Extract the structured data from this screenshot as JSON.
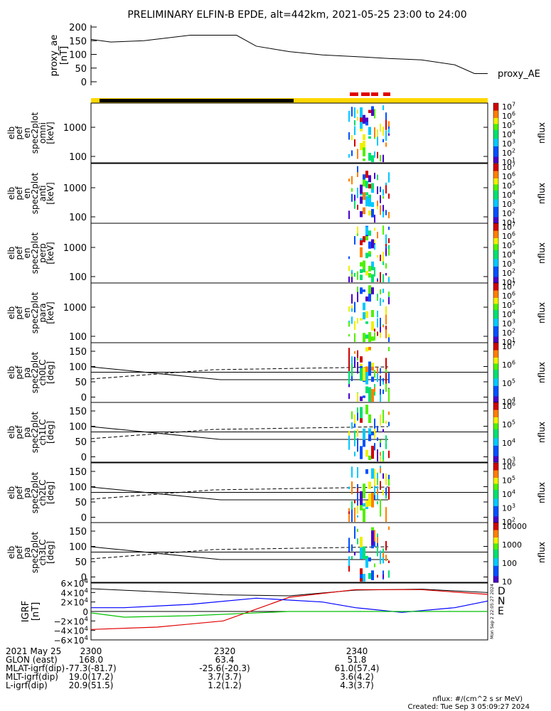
{
  "title": "PRELIMINARY ELFIN-B EPDE, alt=442km, 2021-05-25 23:00 to 24:00",
  "colors": {
    "yellow_bar": "#ffd700",
    "black_bar": "#000000",
    "red_marker": "#e00000",
    "grf_d": "#e00000",
    "grf_n": "#0000ff",
    "grf_e": "#00c000"
  },
  "chart_data": [
    {
      "type": "line",
      "panel": "proxy_ae",
      "ylabel": [
        "proxy_ae",
        "[nT]"
      ],
      "series_label": "proxy_AE",
      "ylim": [
        0,
        200
      ],
      "yticks": [
        "200",
        "150",
        "100",
        "50",
        "0"
      ],
      "x": [
        0,
        3,
        8,
        15,
        22,
        25,
        30,
        35,
        40,
        45,
        50,
        55,
        58,
        60
      ],
      "y": [
        155,
        145,
        150,
        170,
        170,
        130,
        110,
        98,
        92,
        85,
        80,
        62,
        30,
        30
      ]
    },
    {
      "type": "heatmap",
      "panel": "elb_pef_en_spec2plot_omni",
      "ylabel": [
        "elb",
        "pef",
        "en",
        "spec2plot",
        "omni",
        "[keV]"
      ],
      "yticks": [
        "1000",
        "100"
      ],
      "colorbar": {
        "label": "nflux",
        "ticks": [
          "10^1",
          "10^2",
          "10^3",
          "10^4",
          "10^5",
          "10^6",
          "10^7"
        ]
      }
    },
    {
      "type": "heatmap",
      "panel": "elb_pef_en_spec2plot_anti",
      "ylabel": [
        "elb",
        "pef",
        "en",
        "spec2plot",
        "anti",
        "[keV]"
      ],
      "yticks": [
        "1000",
        "100"
      ],
      "colorbar": {
        "label": "nflux",
        "ticks": [
          "10^1",
          "10^2",
          "10^3",
          "10^4",
          "10^5",
          "10^6",
          "10^7"
        ]
      }
    },
    {
      "type": "heatmap",
      "panel": "elb_pef_en_spec2plot_perp",
      "ylabel": [
        "elb",
        "pef",
        "en",
        "spec2plot",
        "perp",
        "[keV]"
      ],
      "yticks": [
        "1000",
        "100"
      ],
      "colorbar": {
        "label": "nflux",
        "ticks": [
          "10^1",
          "10^2",
          "10^3",
          "10^4",
          "10^5",
          "10^6",
          "10^7"
        ]
      }
    },
    {
      "type": "heatmap",
      "panel": "elb_pef_en_spec2plot_para",
      "ylabel": [
        "elb",
        "pef",
        "en",
        "spec2plot",
        "para",
        "[keV]"
      ],
      "yticks": [
        "1000",
        "100"
      ],
      "colorbar": {
        "label": "nflux",
        "ticks": [
          "10^1",
          "10^2",
          "10^3",
          "10^4",
          "10^5",
          "10^6",
          "10^7"
        ]
      }
    },
    {
      "type": "heatmap",
      "panel": "elb_pef_pa_spec2plot_ch0LC",
      "ylabel": [
        "elb",
        "pef",
        "pa",
        "spec2plot",
        "ch0LC",
        "[deg]"
      ],
      "yticks": [
        "150",
        "100",
        "50",
        "0"
      ],
      "colorbar": {
        "label": "nflux",
        "ticks": [
          "10^4",
          "10^5",
          "10^6",
          "10^7"
        ]
      }
    },
    {
      "type": "heatmap",
      "panel": "elb_pef_pa_spec2plot_ch1LC",
      "ylabel": [
        "elb",
        "pef",
        "pa",
        "spec2plot",
        "ch1LC",
        "[deg]"
      ],
      "yticks": [
        "150",
        "100",
        "50",
        "0"
      ],
      "colorbar": {
        "label": "nflux",
        "ticks": [
          "10^3",
          "10^4",
          "10^5",
          "10^6"
        ]
      }
    },
    {
      "type": "heatmap",
      "panel": "elb_pef_pa_spec2plot_ch2LC",
      "ylabel": [
        "elb",
        "pef",
        "pa",
        "spec2plot",
        "ch2LC",
        "[deg]"
      ],
      "yticks": [
        "150",
        "100",
        "50",
        "0"
      ],
      "colorbar": {
        "label": "nflux",
        "ticks": [
          "10^2",
          "10^3",
          "10^4",
          "10^5",
          "10^6"
        ]
      }
    },
    {
      "type": "heatmap",
      "panel": "elb_pef_pa_spec2plot_ch3LC",
      "ylabel": [
        "elb",
        "pef",
        "pa",
        "spec2plot",
        "ch3LC",
        "[deg]"
      ],
      "yticks": [
        "150",
        "100",
        "50",
        "0"
      ],
      "colorbar": {
        "label": "nflux",
        "ticks": [
          "10",
          "100",
          "1000",
          "10000"
        ]
      }
    },
    {
      "type": "line",
      "panel": "IGRF",
      "ylabel": [
        "IGRF",
        "[nT]"
      ],
      "yticks": [
        "6×10^4",
        "4×10^4",
        "2×10^4",
        "0",
        "−2×10^4",
        "−4×10^4",
        "−6×10^4"
      ],
      "ylim": [
        -60000,
        60000
      ],
      "series": [
        {
          "name": "D",
          "x": [
            0,
            10,
            20,
            30,
            40,
            50,
            60
          ],
          "y": [
            -38000,
            -33000,
            -20000,
            30000,
            46000,
            46000,
            36000
          ]
        },
        {
          "name": "N",
          "x": [
            0,
            5,
            15,
            25,
            35,
            40,
            47,
            55,
            60
          ],
          "y": [
            8000,
            8000,
            15000,
            28000,
            20000,
            8000,
            -2000,
            8000,
            22000
          ]
        },
        {
          "name": "E",
          "x": [
            0,
            5,
            15,
            30,
            45,
            60
          ],
          "y": [
            -3000,
            -12000,
            -9000,
            0,
            0,
            0
          ]
        }
      ],
      "extra_line": {
        "x": [
          0,
          20,
          30,
          40,
          50,
          60
        ],
        "y": [
          48000,
          35000,
          33000,
          45000,
          47000,
          40000
        ]
      },
      "side_stamp": "Mon Sep  2 22:05:27 2024"
    }
  ],
  "orbit_table": {
    "rows": [
      {
        "label": "2021 May 25",
        "v1": "2300",
        "v2": "2320",
        "v3": "2340"
      },
      {
        "label": "GLON (east)",
        "v1": "168.0",
        "v2": "63.4",
        "v3": "51.8"
      },
      {
        "label": "MLAT-igrf(dip)",
        "v1": "-77.3(-81.7)",
        "v2": "-25.6(-20.3)",
        "v3": "61.0(57.4)"
      },
      {
        "label": "MLT-igrf(dip)",
        "v1": "19.0(17.2)",
        "v2": "3.7(3.7)",
        "v3": "3.6(4.2)"
      },
      {
        "label": "L-igrf(dip)",
        "v1": "20.9(51.5)",
        "v2": "1.2(1.2)",
        "v3": "4.3(3.7)"
      }
    ]
  },
  "footer": {
    "units": "nflux: #/(cm^2 s sr MeV)",
    "created": "Created: Tue Sep  3 05:09:27 2024"
  }
}
